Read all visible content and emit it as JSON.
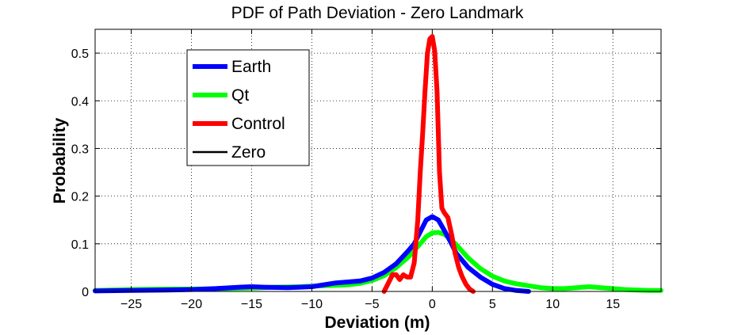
{
  "chart_data": {
    "type": "line",
    "title": "PDF of Path Deviation - Zero Landmark",
    "xlabel": "Deviation (m)",
    "ylabel": "Probability",
    "xlim": [
      -28,
      19
    ],
    "ylim": [
      0,
      0.55
    ],
    "xticks": [
      -25,
      -20,
      -15,
      -10,
      -5,
      0,
      5,
      10,
      15
    ],
    "xtick_labels": [
      "−25",
      "−20",
      "−15",
      "−10",
      "−5",
      "0",
      "5",
      "10",
      "15"
    ],
    "yticks": [
      0,
      0.1,
      0.2,
      0.3,
      0.4,
      0.5
    ],
    "ytick_labels": [
      "0",
      "0.1",
      "0.2",
      "0.3",
      "0.4",
      "0.5"
    ],
    "grid": true,
    "legend_position": "top-left",
    "series": [
      {
        "name": "Earth",
        "color": "#0000ff",
        "x": [
          -28,
          -25,
          -22,
          -20,
          -18,
          -16,
          -15,
          -14,
          -12,
          -10,
          -9,
          -8,
          -7,
          -6,
          -5,
          -4,
          -3,
          -2,
          -1.5,
          -1,
          -0.5,
          0,
          0.5,
          1,
          1.5,
          2,
          3,
          4,
          5,
          6,
          7,
          8
        ],
        "y": [
          0.001,
          0.002,
          0.003,
          0.004,
          0.006,
          0.009,
          0.01,
          0.009,
          0.008,
          0.01,
          0.014,
          0.018,
          0.02,
          0.022,
          0.028,
          0.04,
          0.058,
          0.085,
          0.1,
          0.125,
          0.15,
          0.157,
          0.15,
          0.128,
          0.105,
          0.08,
          0.05,
          0.03,
          0.015,
          0.006,
          0.002,
          0.0
        ]
      },
      {
        "name": "Qt",
        "color": "#00ff00",
        "x": [
          -28,
          -25,
          -22,
          -20,
          -17,
          -15,
          -13,
          -11,
          -10,
          -9,
          -8,
          -7,
          -6,
          -5,
          -4,
          -3,
          -2,
          -1,
          -0.5,
          0,
          0.5,
          1,
          1.5,
          2,
          3,
          4,
          5,
          6,
          7,
          8,
          9,
          10,
          11,
          12,
          13,
          14,
          15,
          16,
          17,
          18,
          19
        ],
        "y": [
          0.002,
          0.004,
          0.005,
          0.005,
          0.006,
          0.007,
          0.009,
          0.01,
          0.011,
          0.012,
          0.013,
          0.014,
          0.017,
          0.023,
          0.033,
          0.05,
          0.072,
          0.1,
          0.115,
          0.123,
          0.124,
          0.12,
          0.11,
          0.098,
          0.07,
          0.048,
          0.032,
          0.022,
          0.016,
          0.012,
          0.008,
          0.006,
          0.006,
          0.008,
          0.01,
          0.008,
          0.006,
          0.004,
          0.003,
          0.002,
          0.002
        ]
      },
      {
        "name": "Control",
        "color": "#ff0000",
        "x": [
          -4.0,
          -3.6,
          -3.3,
          -3.0,
          -2.7,
          -2.4,
          -2.1,
          -1.8,
          -1.5,
          -1.2,
          -1.0,
          -0.8,
          -0.6,
          -0.4,
          -0.2,
          0,
          0.2,
          0.4,
          0.6,
          0.8,
          1.0,
          1.3,
          1.6,
          1.9,
          2.2,
          2.5,
          2.8,
          3.1,
          3.4
        ],
        "y": [
          0.0,
          0.02,
          0.035,
          0.035,
          0.025,
          0.035,
          0.03,
          0.03,
          0.06,
          0.15,
          0.25,
          0.33,
          0.42,
          0.5,
          0.53,
          0.535,
          0.505,
          0.42,
          0.25,
          0.175,
          0.165,
          0.155,
          0.12,
          0.08,
          0.05,
          0.03,
          0.015,
          0.005,
          0.0
        ]
      },
      {
        "name": "Zero",
        "color": "#000000",
        "x": [],
        "y": []
      }
    ]
  }
}
